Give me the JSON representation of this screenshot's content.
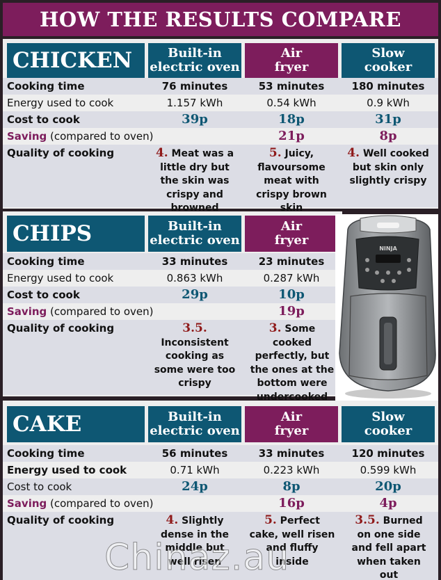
{
  "title": "HOW THE RESULTS COMPARE",
  "colors": {
    "teal": "#0e5773",
    "purple": "#7d1d5c",
    "score_red": "#8f1a1a"
  },
  "row_labels": {
    "cooking_time": "Cooking time",
    "energy": "Energy used to cook",
    "cost": "Cost to cook",
    "saving": "Saving",
    "saving_suffix": " (compared to oven)",
    "quality": "Quality of cooking"
  },
  "columns": {
    "oven": [
      "Built-in",
      "electric oven"
    ],
    "fryer": [
      "Air",
      "fryer"
    ],
    "slow": [
      "Slow",
      "cooker"
    ]
  },
  "chicken": {
    "name": "CHICKEN",
    "oven": {
      "time": "76 minutes",
      "energy": "1.157 kWh",
      "cost": "39p",
      "saving": "",
      "score": "4.",
      "quality": " Meat was a little dry but the skin was crispy and browned"
    },
    "fryer": {
      "time": "53 minutes",
      "energy": "0.54 kWh",
      "cost": "18p",
      "saving": "21p",
      "score": "5.",
      "quality": " Juicy, flavoursome meat with crispy brown skin"
    },
    "slow": {
      "time": "180 minutes",
      "energy": "0.9 kWh",
      "cost": "31p",
      "saving": "8p",
      "score": "4.",
      "quality": " Well cooked but skin only slightly crispy"
    }
  },
  "chips": {
    "name": "CHIPS",
    "oven": {
      "time": "33 minutes",
      "energy": "0.863 kWh",
      "cost": "29p",
      "saving": "",
      "score": "3.5.",
      "quality": " Inconsistent cooking as some were too crispy"
    },
    "fryer": {
      "time": "23 minutes",
      "energy": "0.287 kWh",
      "cost": "10p",
      "saving": "19p",
      "score": "3.",
      "quality": " Some cooked perfectly, but the ones at the bottom were undercooked"
    }
  },
  "cake": {
    "name": "CAKE",
    "oven": {
      "time": "56 minutes",
      "energy": "0.71 kWh",
      "cost": "24p",
      "saving": "",
      "score": "4.",
      "quality": " Slightly dense in the middle but well risen"
    },
    "fryer": {
      "time": "33 minutes",
      "energy": "0.223 kWh",
      "cost": "8p",
      "saving": "16p",
      "score": "5.",
      "quality": " Perfect cake, well risen and fluffy inside"
    },
    "slow": {
      "time": "120 minutes",
      "energy": "0.599 kWh",
      "cost": "20p",
      "saving": "4p",
      "score": "3.5.",
      "quality": " Burned on one side and fell apart when taken out"
    }
  },
  "fryer_image": {
    "brand": "NINJA"
  },
  "watermark": "Chinaz.au"
}
